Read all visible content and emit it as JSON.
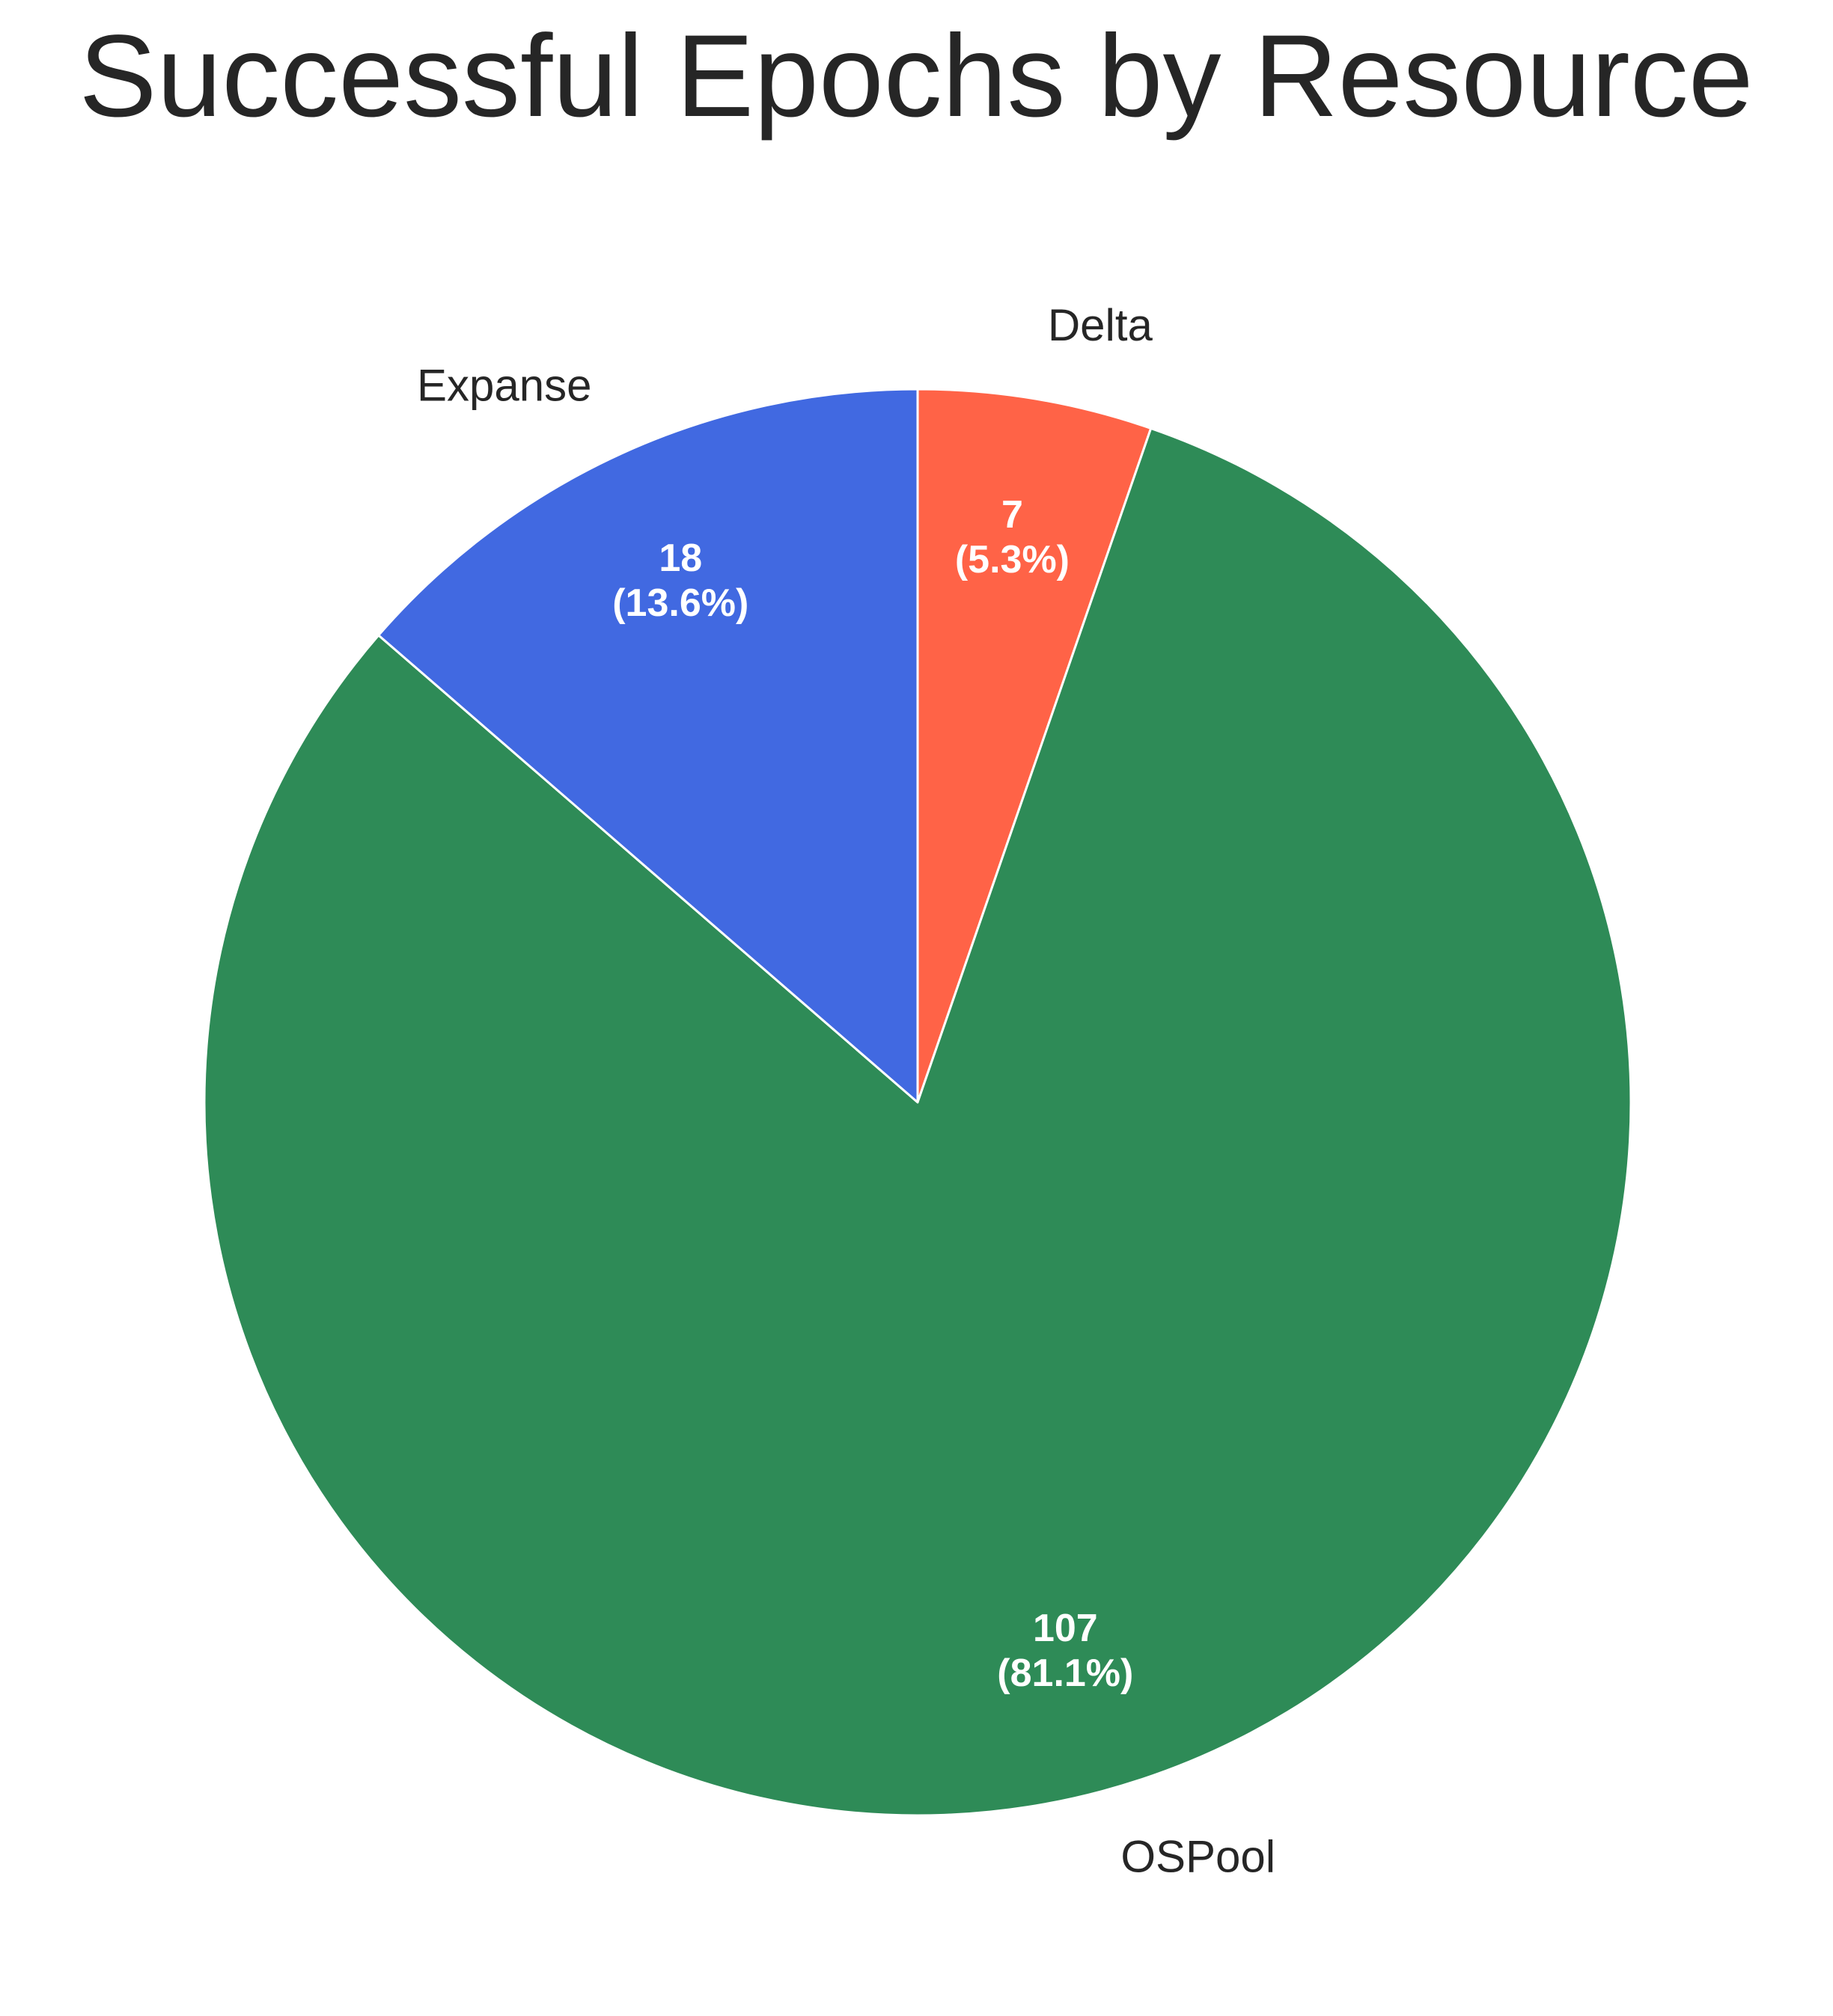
{
  "chart_data": {
    "type": "pie",
    "title": "Successful Epochs by Resource",
    "start_angle_deg": 90,
    "direction": "clockwise",
    "slices": [
      {
        "label": "Delta",
        "value": 7,
        "value_text": "7",
        "percent_text": "(5.3%)",
        "color": "#FF6347"
      },
      {
        "label": "OSPool",
        "value": 107,
        "value_text": "107",
        "percent_text": "(81.1%)",
        "color": "#2E8B57"
      },
      {
        "label": "Expanse",
        "value": 18,
        "value_text": "18",
        "percent_text": "(13.6%)",
        "color": "#4169E1"
      }
    ],
    "edge_color": "#ffffff"
  }
}
